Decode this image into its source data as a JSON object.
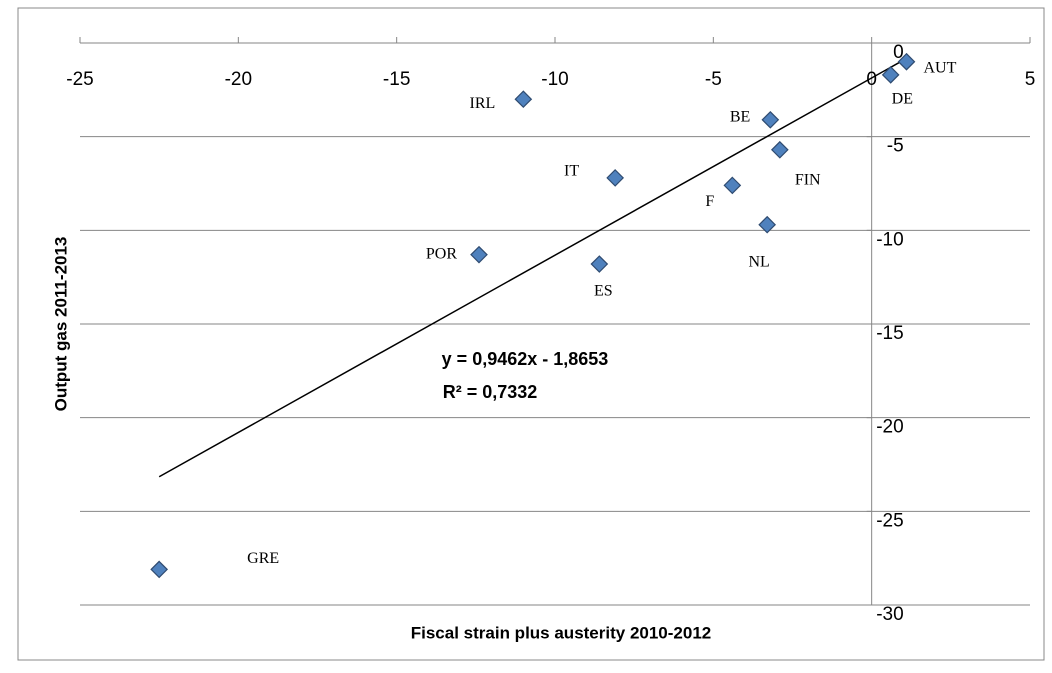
{
  "chart_data": {
    "type": "scatter",
    "x_label": "Fiscal strain plus austerity 2010-2012",
    "y_label": "Output gas 2011-2013",
    "categories": [
      "GRE",
      "IRL",
      "BE",
      "FIN",
      "IT",
      "F",
      "NL",
      "POR",
      "ES",
      "DE",
      "AUT"
    ],
    "x": [
      -22.5,
      -11.0,
      -3.2,
      -2.9,
      -8.1,
      -4.4,
      -3.3,
      -12.4,
      -8.6,
      0.6,
      1.1
    ],
    "values": [
      -28.1,
      -3.0,
      -4.1,
      -5.7,
      -7.2,
      -7.6,
      -9.7,
      -11.3,
      -11.8,
      -1.7,
      -1.0
    ],
    "color": "#4f81bd",
    "xlim": [
      -25,
      5
    ],
    "xticks": [
      -25,
      -20,
      -15,
      -10,
      -5,
      0,
      5
    ],
    "ylim": [
      -30,
      0
    ],
    "yticks": [
      0,
      -5,
      -10,
      -15,
      -20,
      -25,
      -30
    ],
    "grid": true,
    "trendline": {
      "slope": 0.9462,
      "intercept": -1.8653,
      "equation": "y = 0,9462x - 1,8653",
      "r_squared": 0.7332,
      "r_squared_label": "R² = 0,7332"
    }
  }
}
